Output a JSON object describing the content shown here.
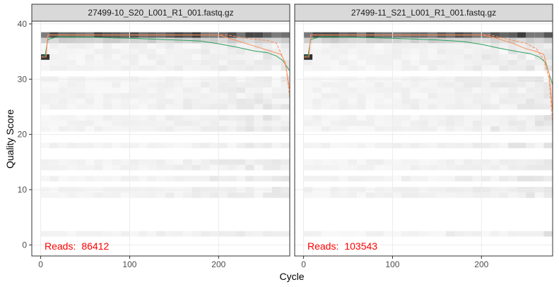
{
  "chart_data": {
    "type": "heatmap",
    "xlabel": "Cycle",
    "ylabel": "Quality Score",
    "xlim": [
      -10,
      280
    ],
    "ylim": [
      -2,
      40.5
    ],
    "x_ticks": [
      0,
      100,
      200
    ],
    "y_ticks": [
      0,
      10,
      20,
      30,
      40
    ],
    "grid": true,
    "colors": {
      "mean_line": "#2ca25f",
      "median_line": "#fc8d59",
      "quartile_line": "#fc8d59",
      "reads_label": "#ff0000",
      "heat_low": "#f5f5f5",
      "heat_high": "#000000"
    },
    "panels": [
      {
        "title": "27499-10_S20_L001_R1_001.fastq.gz",
        "reads_label": "Reads:",
        "reads_count": "86412",
        "max_cycle": 280,
        "mean_quality": [
          [
            1,
            34.2
          ],
          [
            5,
            34.3
          ],
          [
            8,
            37.2
          ],
          [
            20,
            37.7
          ],
          [
            50,
            37.6
          ],
          [
            100,
            37.4
          ],
          [
            150,
            37.1
          ],
          [
            180,
            36.9
          ],
          [
            200,
            36.4
          ],
          [
            220,
            35.8
          ],
          [
            240,
            35.1
          ],
          [
            255,
            34.8
          ],
          [
            265,
            34.2
          ],
          [
            272,
            33.4
          ],
          [
            280,
            31.5
          ]
        ],
        "median_quality": [
          [
            1,
            34
          ],
          [
            6,
            34
          ],
          [
            8,
            38
          ],
          [
            200,
            38
          ],
          [
            210,
            37.5
          ],
          [
            230,
            36.5
          ],
          [
            250,
            35.5
          ],
          [
            260,
            35
          ],
          [
            270,
            34.5
          ],
          [
            275,
            33
          ],
          [
            280,
            28
          ]
        ],
        "lower_quartile": [
          [
            1,
            34
          ],
          [
            6,
            34
          ],
          [
            8,
            38
          ],
          [
            210,
            38
          ],
          [
            230,
            37.4
          ],
          [
            255,
            37
          ],
          [
            265,
            36.5
          ],
          [
            272,
            34
          ],
          [
            276,
            32
          ],
          [
            280,
            26.5
          ]
        ]
      },
      {
        "title": "27499-11_S21_L001_R1_001.fastq.gz",
        "reads_label": "Reads:",
        "reads_count": "103543",
        "max_cycle": 280,
        "mean_quality": [
          [
            1,
            34.2
          ],
          [
            5,
            34.3
          ],
          [
            8,
            37.2
          ],
          [
            20,
            37.7
          ],
          [
            50,
            37.6
          ],
          [
            100,
            37.4
          ],
          [
            150,
            37.1
          ],
          [
            180,
            36.8
          ],
          [
            200,
            36.3
          ],
          [
            220,
            35.6
          ],
          [
            240,
            35
          ],
          [
            255,
            34.6
          ],
          [
            265,
            34
          ],
          [
            272,
            33
          ],
          [
            280,
            29
          ]
        ],
        "median_quality": [
          [
            1,
            34
          ],
          [
            6,
            34
          ],
          [
            8,
            38
          ],
          [
            200,
            38
          ],
          [
            215,
            37.5
          ],
          [
            235,
            36.5
          ],
          [
            250,
            35.5
          ],
          [
            262,
            35
          ],
          [
            270,
            34.5
          ],
          [
            276,
            31
          ],
          [
            280,
            24
          ]
        ],
        "lower_quartile": [
          [
            1,
            34
          ],
          [
            6,
            34
          ],
          [
            8,
            38
          ],
          [
            210,
            38
          ],
          [
            230,
            37.2
          ],
          [
            250,
            36.5
          ],
          [
            262,
            35.5
          ],
          [
            270,
            33.5
          ],
          [
            276,
            30
          ],
          [
            280,
            22
          ]
        ]
      }
    ]
  }
}
